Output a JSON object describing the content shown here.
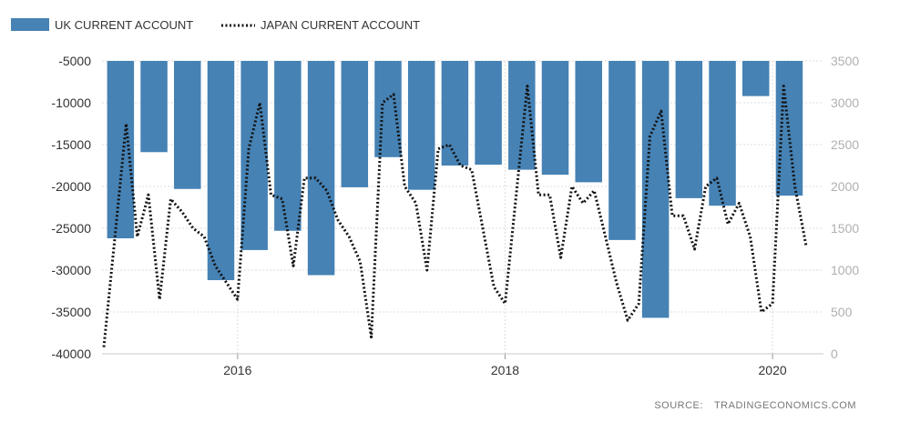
{
  "chart_data": {
    "type": "bar+line",
    "legend_position": "top-left",
    "grid": true,
    "series": [
      {
        "name": "UK CURRENT ACCOUNT",
        "kind": "bar",
        "axis": "left",
        "color": "#4682b4",
        "x": [
          "2015-03",
          "2015-06",
          "2015-09",
          "2015-12",
          "2016-03",
          "2016-06",
          "2016-09",
          "2016-12",
          "2017-03",
          "2017-06",
          "2017-09",
          "2017-12",
          "2018-03",
          "2018-06",
          "2018-09",
          "2018-12",
          "2019-03",
          "2019-06",
          "2019-09",
          "2019-12",
          "2020-03"
        ],
        "values": [
          -26200,
          -15900,
          -20300,
          -31200,
          -27600,
          -25300,
          -30600,
          -20100,
          -16500,
          -20400,
          -17500,
          -17400,
          -18000,
          -18600,
          -19500,
          -26400,
          -35700,
          -21400,
          -22300,
          -9200,
          -21100
        ]
      },
      {
        "name": "JAPAN CURRENT ACCOUNT",
        "kind": "line",
        "axis": "right",
        "color": "#111111",
        "values": [
          80,
          1400,
          2750,
          1400,
          1900,
          650,
          1850,
          1700,
          1500,
          1400,
          1050,
          850,
          650,
          2450,
          3000,
          1900,
          1850,
          1050,
          2100,
          2100,
          1950,
          1600,
          1400,
          1100,
          200,
          3000,
          3100,
          2000,
          1800,
          1000,
          2450,
          2500,
          2250,
          2200,
          1500,
          800,
          600,
          1900,
          3200,
          1900,
          1900,
          1150,
          2000,
          1800,
          1950,
          1400,
          850,
          400,
          600,
          2600,
          2900,
          1650,
          1650,
          1250,
          2000,
          2100,
          1550,
          1800,
          1400,
          500,
          600,
          3200,
          2000,
          1300
        ]
      }
    ],
    "y_left": {
      "ticks": [
        -5000,
        -10000,
        -15000,
        -20000,
        -25000,
        -30000,
        -35000,
        -40000
      ],
      "range": [
        -40000,
        -5000
      ]
    },
    "y_right": {
      "ticks": [
        3500,
        3000,
        2500,
        2000,
        1500,
        1000,
        500,
        0
      ],
      "range": [
        0,
        3500
      ]
    },
    "x_axis": {
      "ticks": [
        "2016",
        "2018",
        "2020"
      ]
    }
  },
  "legend": {
    "uk_label": "UK CURRENT ACCOUNT",
    "japan_label": "JAPAN CURRENT ACCOUNT"
  },
  "source": {
    "prefix": "SOURCE:",
    "name": "TRADINGECONOMICS.COM"
  }
}
